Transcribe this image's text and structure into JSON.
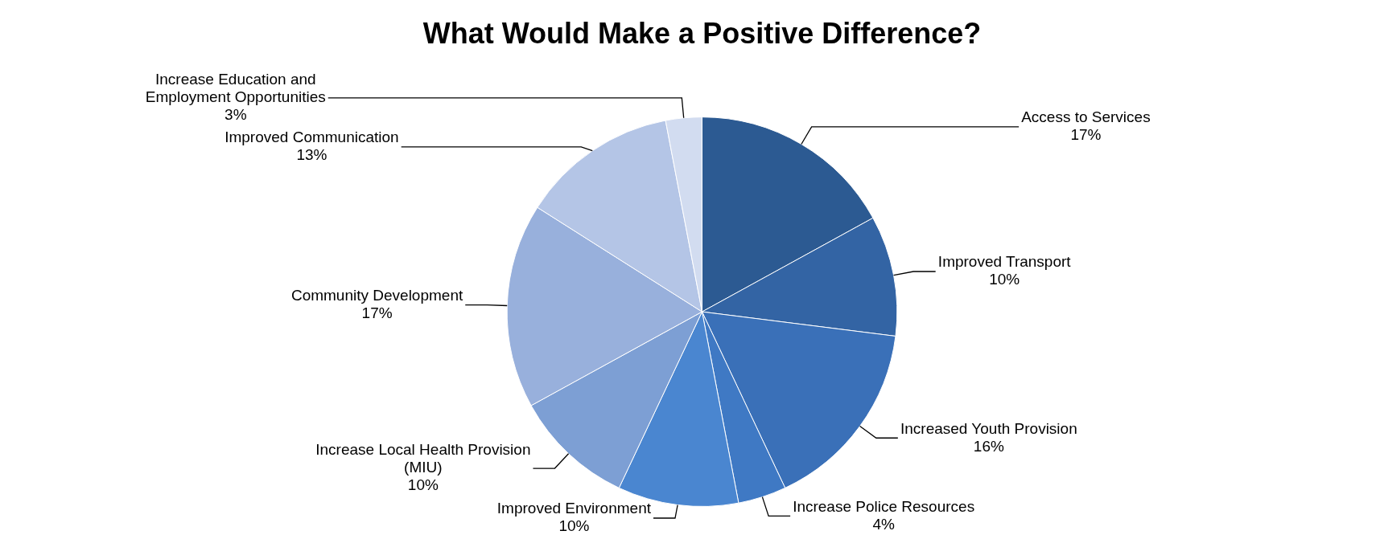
{
  "chart_data": {
    "type": "pie",
    "title": "What Would Make a Positive Difference?",
    "categories": [
      "Access to Services",
      "Improved Transport",
      "Increased Youth Provision",
      "Increase Police Resources",
      "Improved Environment",
      "Increase Local Health Provision (MIU)",
      "Community Development",
      "Improved Communication",
      "Increase Education and Employment Opportunities"
    ],
    "values": [
      17,
      10,
      16,
      4,
      10,
      10,
      17,
      13,
      3
    ],
    "value_labels": [
      "17%",
      "10%",
      "16%",
      "4%",
      "10%",
      "10%",
      "17%",
      "13%",
      "3%"
    ],
    "colors": [
      "#2c5a92",
      "#3364a4",
      "#3a70b8",
      "#3f79c4",
      "#4a86d0",
      "#7d9fd4",
      "#98b0dc",
      "#b4c5e6",
      "#d2dcf0"
    ]
  }
}
